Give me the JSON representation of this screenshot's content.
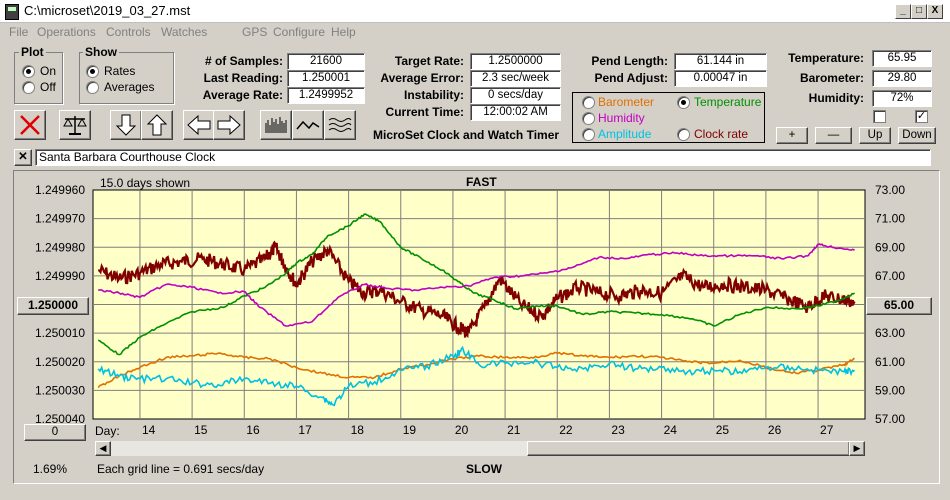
{
  "window": {
    "title": "C:\\microset\\2019_03_27.mst"
  },
  "titlebar_buttons": {
    "minimize": "_",
    "maximize": "□",
    "close": "X"
  },
  "menu": [
    "File",
    "Operations",
    "Controls",
    "Watches",
    "GPS",
    "Configure",
    "Help"
  ],
  "plot_group": {
    "label": "Plot",
    "options": [
      "On",
      "Off"
    ],
    "selected": "On"
  },
  "show_group": {
    "label": "Show",
    "options": [
      "Rates",
      "Averages"
    ],
    "selected": "Rates"
  },
  "stats": {
    "samples_label": "# of Samples:",
    "samples": "21600",
    "last_reading_label": "Last Reading:",
    "last_reading": "1.250001",
    "average_rate_label": "Average Rate:",
    "average_rate": "1.2499952",
    "target_rate_label": "Target Rate:",
    "target_rate": "1.2500000",
    "average_error_label": "Average Error:",
    "average_error": "2.3 sec/week",
    "instability_label": "Instability:",
    "instability": "0 secs/day",
    "current_time_label": "Current Time:",
    "current_time": "12:00:02 AM",
    "pend_length_label": "Pend Length:",
    "pend_length": "61.144 in",
    "pend_adjust_label": "Pend Adjust:",
    "pend_adjust": "0.00047 in",
    "temperature_label": "Temperature:",
    "temperature": "65.95",
    "barometer_label": "Barometer:",
    "barometer": "29.80",
    "humidity_label": "Humidity:",
    "humidity": "72%"
  },
  "app_caption": "MicroSet Clock and Watch Timer",
  "sensor_options": [
    {
      "label": "Barometer",
      "color": "#e07000",
      "selected": false
    },
    {
      "label": "Temperature",
      "color": "#009000",
      "selected": true
    },
    {
      "label": "Humidity",
      "color": "#c000c0",
      "selected": false
    },
    {
      "label": "Clock rate",
      "color": "#800000",
      "selected": false
    },
    {
      "label": "Amplitude",
      "color": "#00c0e0",
      "selected": false
    }
  ],
  "right_buttons": {
    "plus": "+",
    "minus": "—",
    "up": "Up",
    "down": "Down"
  },
  "checkboxes": [
    {
      "checked": false
    },
    {
      "checked": true
    }
  ],
  "toolbar_icons": [
    "close-x-icon",
    "balance-scale-icon",
    "arrow-down-icon",
    "arrow-up-icon",
    "arrow-left-icon",
    "arrow-right-icon",
    "bar-histogram-icon",
    "wave-icon",
    "multi-wave-icon"
  ],
  "clock_name": "Santa Barbara Courthouse Clock",
  "chart": {
    "days_shown": "15.0 days shown",
    "top_label": "FAST",
    "bottom_label": "SLOW",
    "grid_note": "Each grid line = 0.691 secs/day",
    "left_button": "1.250000",
    "right_button": "65.00",
    "bottom_button": "0",
    "percent": "1.69%",
    "day_label": "Day:"
  },
  "chart_data": {
    "type": "line",
    "x_label": "Day",
    "x_ticks": [
      14,
      15,
      16,
      17,
      18,
      19,
      20,
      21,
      22,
      23,
      24,
      25,
      26,
      27
    ],
    "xlim": [
      13.1,
      27.9
    ],
    "y_left": {
      "ticks": [
        "1.249960",
        "1.249970",
        "1.249980",
        "1.249990",
        "1.250000",
        "1.250010",
        "1.250020",
        "1.250030",
        "1.250040"
      ],
      "range": [
        1.24996,
        1.25004
      ],
      "inverted": true
    },
    "y_right": {
      "ticks": [
        "73.00",
        "71.00",
        "69.00",
        "67.00",
        "65.00",
        "63.00",
        "61.00",
        "59.00",
        "57.00"
      ],
      "range": [
        57,
        73
      ]
    },
    "series": [
      {
        "name": "Clock rate",
        "color": "#800000",
        "x": [
          13.2,
          13.6,
          14.0,
          14.4,
          14.8,
          15.2,
          15.6,
          16.0,
          16.4,
          16.6,
          16.8,
          17.0,
          17.3,
          17.6,
          18.0,
          18.3,
          18.6,
          19.0,
          19.4,
          19.8,
          20.1,
          20.3,
          20.6,
          20.9,
          21.3,
          21.7,
          22.0,
          22.4,
          22.8,
          23.2,
          23.6,
          24.0,
          24.4,
          24.8,
          25.2,
          25.6,
          26.0,
          26.4,
          26.8,
          27.1,
          27.4,
          27.7
        ],
        "values": [
          1.249988,
          1.249991,
          1.249989,
          1.249986,
          1.249985,
          1.249984,
          1.249986,
          1.249988,
          1.249984,
          1.24998,
          1.249987,
          1.249993,
          1.249985,
          1.249981,
          1.249992,
          1.249996,
          1.249995,
          1.249999,
          1.250002,
          1.250004,
          1.250008,
          1.25001,
          1.250001,
          1.249991,
          1.25,
          1.250004,
          1.249998,
          1.249994,
          1.249996,
          1.249997,
          1.249995,
          1.249996,
          1.24999,
          1.249994,
          1.249993,
          1.249994,
          1.249995,
          1.249998,
          1.250001,
          1.249997,
          1.249998,
          1.249999
        ]
      },
      {
        "name": "Temperature",
        "color": "#009000",
        "x": [
          13.2,
          13.6,
          14.0,
          14.4,
          15.0,
          15.6,
          16.0,
          16.4,
          16.8,
          17.0,
          17.3,
          17.6,
          18.0,
          18.3,
          18.6,
          19.0,
          19.4,
          19.8,
          20.1,
          20.4,
          20.8,
          21.2,
          21.6,
          22.0,
          22.5,
          23.0,
          23.5,
          24.0,
          24.6,
          25.0,
          25.5,
          26.0,
          26.6,
          27.0,
          27.4,
          27.7
        ],
        "values": [
          62.5,
          61.5,
          62.7,
          63.5,
          64.5,
          64.8,
          65.6,
          66.2,
          67.2,
          67.9,
          68.5,
          69.8,
          70.5,
          71.3,
          70.8,
          69.0,
          68.2,
          67.4,
          66.6,
          65.8,
          65.3,
          64.7,
          64.9,
          64.9,
          64.3,
          64.5,
          64.4,
          64.3,
          64.0,
          63.5,
          64.3,
          64.8,
          64.7,
          64.9,
          65.3,
          65.8
        ]
      },
      {
        "name": "Humidity",
        "color": "#c000c0",
        "x": [
          13.2,
          13.6,
          14.0,
          14.5,
          15.0,
          15.5,
          16.0,
          16.3,
          16.8,
          17.3,
          17.8,
          18.3,
          18.8,
          19.3,
          19.8,
          20.3,
          20.8,
          21.3,
          21.8,
          22.3,
          22.8,
          23.3,
          23.8,
          24.3,
          24.8,
          25.3,
          25.8,
          26.3,
          26.8,
          27.0,
          27.3,
          27.7
        ],
        "values": [
          66.0,
          65.8,
          65.5,
          66.4,
          66.2,
          65.8,
          65.9,
          64.8,
          63.5,
          63.8,
          65.5,
          66.4,
          66.1,
          66.0,
          66.2,
          66.3,
          66.9,
          67.0,
          67.2,
          67.6,
          68.3,
          68.2,
          68.5,
          68.6,
          68.4,
          68.4,
          68.4,
          68.2,
          68.4,
          69.2,
          69.0,
          68.8
        ]
      },
      {
        "name": "Barometer",
        "color": "#e07000",
        "x": [
          13.2,
          13.6,
          14.0,
          14.5,
          15.0,
          15.5,
          16.0,
          16.5,
          17.0,
          17.5,
          18.0,
          18.5,
          19.0,
          19.5,
          20.0,
          20.5,
          21.0,
          21.5,
          22.0,
          22.5,
          23.0,
          23.5,
          24.0,
          24.5,
          25.0,
          25.5,
          26.0,
          26.5,
          27.0,
          27.5,
          27.7
        ],
        "values": [
          59.2,
          60.0,
          60.6,
          61.3,
          61.4,
          61.6,
          61.3,
          61.2,
          60.6,
          60.2,
          59.9,
          59.9,
          60.5,
          60.8,
          61.2,
          61.4,
          61.3,
          61.3,
          61.6,
          61.4,
          61.3,
          61.4,
          61.3,
          61.0,
          60.9,
          61.1,
          60.6,
          60.2,
          60.4,
          60.8,
          61.2
        ]
      },
      {
        "name": "Amplitude",
        "color": "#00c0e0",
        "x": [
          13.2,
          13.6,
          14.0,
          14.5,
          15.0,
          15.5,
          16.0,
          16.5,
          17.0,
          17.5,
          17.7,
          18.0,
          18.5,
          19.0,
          19.5,
          20.0,
          20.2,
          20.5,
          21.0,
          21.5,
          22.0,
          22.5,
          23.0,
          23.5,
          24.0,
          24.5,
          25.0,
          25.5,
          26.0,
          26.5,
          27.0,
          27.5,
          27.7
        ],
        "values": [
          60.5,
          60.0,
          59.8,
          59.8,
          59.5,
          59.4,
          59.8,
          59.5,
          59.3,
          58.5,
          58.0,
          59.3,
          59.6,
          60.4,
          60.7,
          61.4,
          61.8,
          60.8,
          60.9,
          61.0,
          60.6,
          60.5,
          60.9,
          60.5,
          60.6,
          60.3,
          60.4,
          60.3,
          60.6,
          60.6,
          60.4,
          60.3,
          60.4
        ]
      }
    ]
  }
}
